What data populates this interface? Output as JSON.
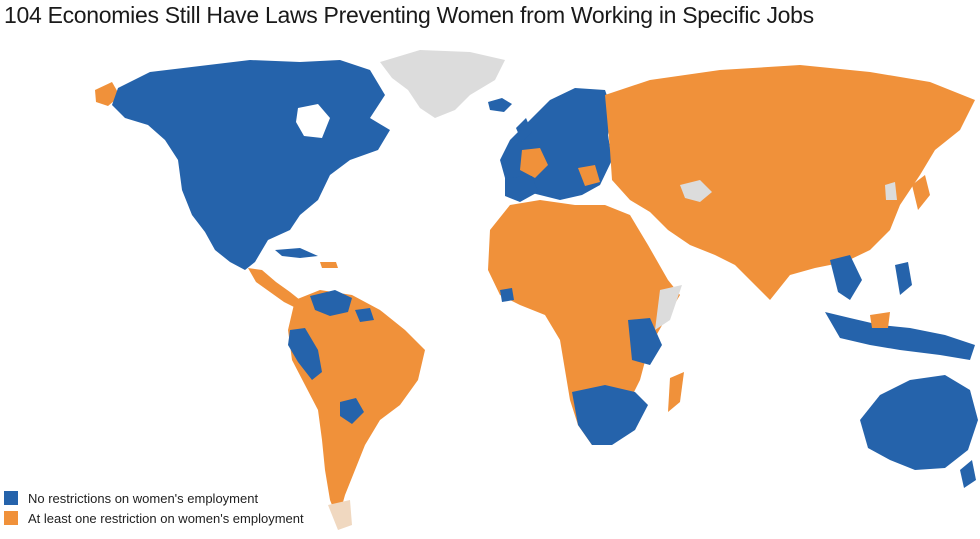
{
  "title": "104 Economies Still Have Laws Preventing Women from Working in Specific Jobs",
  "colors": {
    "no_restriction": "#2563ab",
    "restriction": "#f0913a",
    "no_data": "#dcdcdc",
    "background": "#ffffff"
  },
  "legend": [
    {
      "label": "No restrictions on women's employment",
      "color": "#2563ab"
    },
    {
      "label": "At least one restriction on women's employment",
      "color": "#f0913a"
    }
  ]
}
